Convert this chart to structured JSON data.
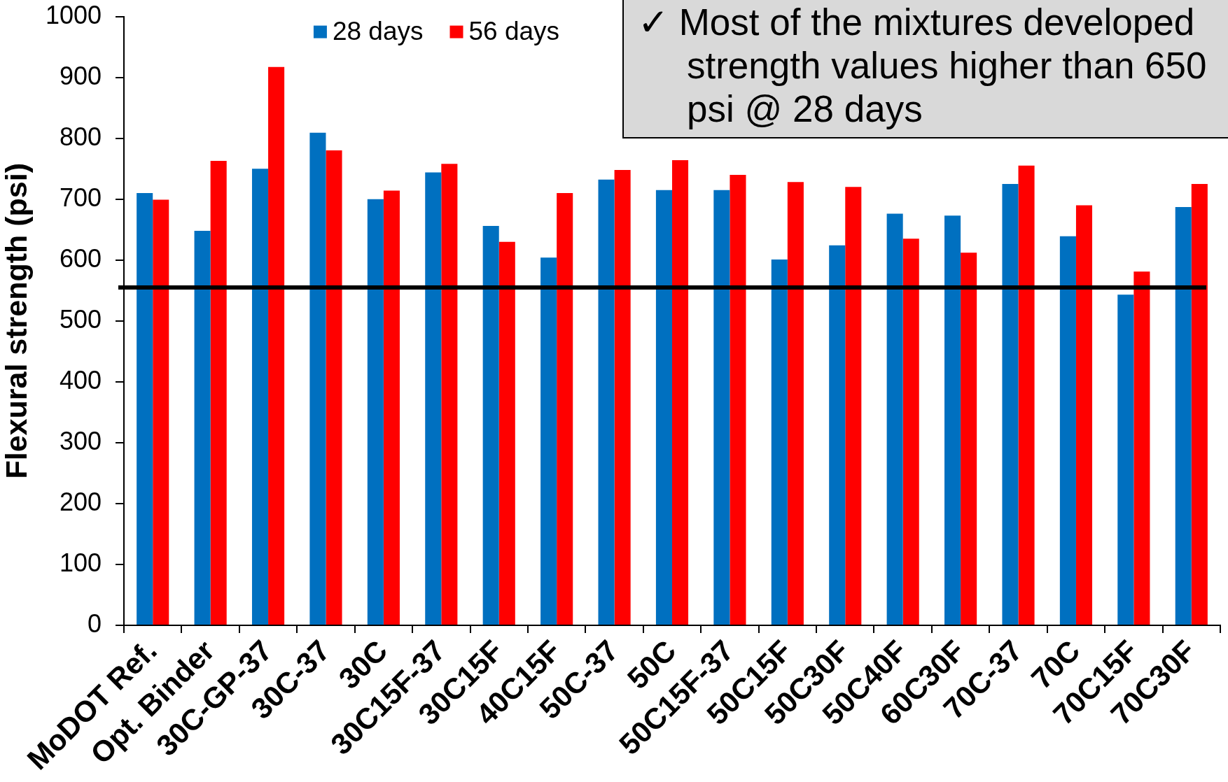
{
  "chart_data": {
    "type": "bar",
    "categories": [
      "MoDOT Ref.",
      "Opt. Binder",
      "30C-GP-37",
      "30C-37",
      "30C",
      "30C15F-37",
      "30C15F",
      "40C15F",
      "50C-37",
      "50C",
      "50C15F-37",
      "50C15F",
      "50C30F",
      "50C40F",
      "60C30F",
      "70C-37",
      "70C",
      "70C15F",
      "70C30F"
    ],
    "series": [
      {
        "name": "28 days",
        "color": "#0070c0",
        "values": [
          710,
          648,
          750,
          809,
          700,
          744,
          656,
          604,
          732,
          715,
          715,
          601,
          624,
          676,
          673,
          725,
          639,
          543,
          687
        ]
      },
      {
        "name": "56 days",
        "color": "#ff0000",
        "values": [
          699,
          763,
          917,
          780,
          714,
          758,
          630,
          710,
          748,
          764,
          740,
          728,
          720,
          635,
          612,
          755,
          690,
          581,
          725
        ]
      }
    ],
    "ylabel": "Flexural strength (psi)",
    "ylim": [
      0,
      1000
    ],
    "yticks": [
      0,
      100,
      200,
      300,
      400,
      500,
      600,
      700,
      800,
      900,
      1000
    ],
    "ref_lines": [
      {
        "axis": "y",
        "value": 555,
        "color": "#000000"
      }
    ],
    "annotations": [
      "✓ Most of the mixtures developed strength values higher than 650 psi @ 28 days"
    ],
    "legend": "top left"
  }
}
